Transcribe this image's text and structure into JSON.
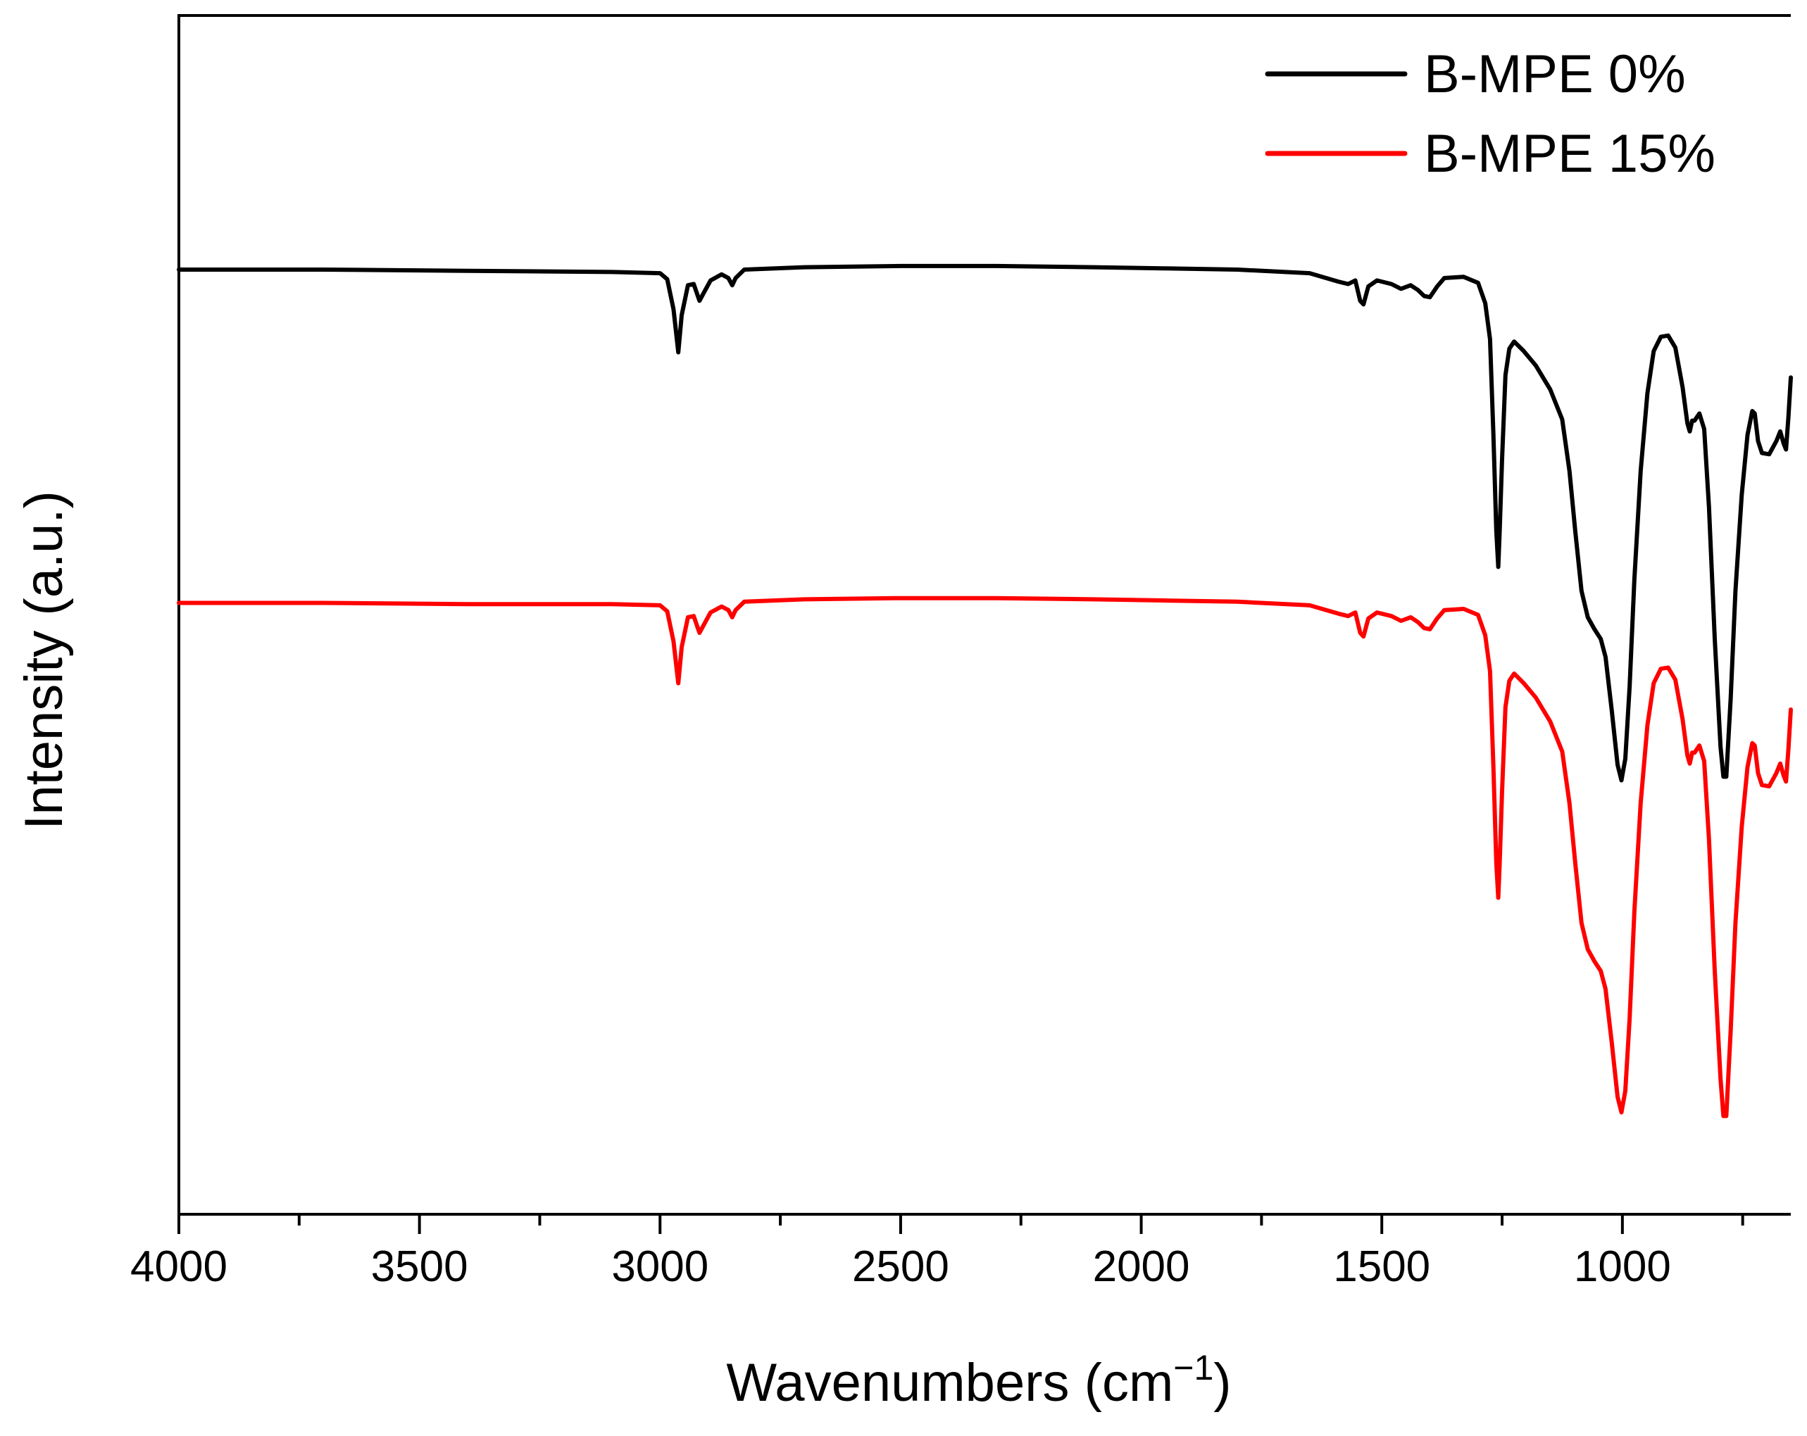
{
  "chart_data": {
    "type": "line",
    "title": "",
    "xlabel": "Wavenumbers (cm",
    "xlabel_sup": "−1",
    "xlabel_close": ")",
    "ylabel": "Intensity (a.u.)",
    "xlim": [
      4000,
      650
    ],
    "ylim": [
      0,
      100
    ],
    "x_ticks": [
      4000,
      3500,
      3000,
      2500,
      2000,
      1500,
      1000
    ],
    "x_tick_labels": [
      "4000",
      "3500",
      "3000",
      "2500",
      "2000",
      "1500",
      "1000"
    ],
    "minor_x_ticks": [
      3750,
      3250,
      2750,
      2250,
      1750,
      1250,
      750
    ],
    "y_ticks_visible": false,
    "grid": false,
    "legend_position": "top-right",
    "series": [
      {
        "name": "B-MPE 0%",
        "color": "#000000",
        "points": [
          [
            4000,
            78.8
          ],
          [
            3700,
            78.8
          ],
          [
            3400,
            78.7
          ],
          [
            3100,
            78.6
          ],
          [
            3000,
            78.5
          ],
          [
            2985,
            78.0
          ],
          [
            2972,
            75.5
          ],
          [
            2962,
            71.9
          ],
          [
            2955,
            75.0
          ],
          [
            2942,
            77.5
          ],
          [
            2930,
            77.6
          ],
          [
            2918,
            76.2
          ],
          [
            2910,
            76.8
          ],
          [
            2895,
            77.9
          ],
          [
            2872,
            78.4
          ],
          [
            2858,
            78.1
          ],
          [
            2850,
            77.5
          ],
          [
            2843,
            78.1
          ],
          [
            2825,
            78.8
          ],
          [
            2700,
            79.0
          ],
          [
            2500,
            79.1
          ],
          [
            2300,
            79.1
          ],
          [
            2100,
            79.0
          ],
          [
            1950,
            78.9
          ],
          [
            1800,
            78.8
          ],
          [
            1650,
            78.5
          ],
          [
            1590,
            77.8
          ],
          [
            1570,
            77.6
          ],
          [
            1555,
            77.9
          ],
          [
            1545,
            76.2
          ],
          [
            1538,
            75.9
          ],
          [
            1528,
            77.4
          ],
          [
            1510,
            77.9
          ],
          [
            1480,
            77.6
          ],
          [
            1460,
            77.2
          ],
          [
            1440,
            77.5
          ],
          [
            1425,
            77.1
          ],
          [
            1412,
            76.6
          ],
          [
            1400,
            76.5
          ],
          [
            1385,
            77.4
          ],
          [
            1370,
            78.1
          ],
          [
            1330,
            78.2
          ],
          [
            1300,
            77.7
          ],
          [
            1285,
            76.0
          ],
          [
            1275,
            73.0
          ],
          [
            1268,
            65.0
          ],
          [
            1262,
            57.0
          ],
          [
            1258,
            54.0
          ],
          [
            1255,
            57.0
          ],
          [
            1250,
            63.0
          ],
          [
            1243,
            70.0
          ],
          [
            1235,
            72.2
          ],
          [
            1225,
            72.8
          ],
          [
            1205,
            72.0
          ],
          [
            1180,
            70.8
          ],
          [
            1150,
            68.8
          ],
          [
            1125,
            66.3
          ],
          [
            1110,
            62.0
          ],
          [
            1098,
            57.0
          ],
          [
            1085,
            52.0
          ],
          [
            1072,
            49.8
          ],
          [
            1058,
            48.8
          ],
          [
            1045,
            48.0
          ],
          [
            1035,
            46.5
          ],
          [
            1022,
            42.0
          ],
          [
            1010,
            37.5
          ],
          [
            1002,
            36.2
          ],
          [
            994,
            38.0
          ],
          [
            985,
            44.0
          ],
          [
            975,
            53.0
          ],
          [
            962,
            62.0
          ],
          [
            948,
            68.5
          ],
          [
            935,
            72.0
          ],
          [
            920,
            73.2
          ],
          [
            905,
            73.3
          ],
          [
            890,
            72.3
          ],
          [
            875,
            69.0
          ],
          [
            865,
            66.0
          ],
          [
            860,
            65.3
          ],
          [
            855,
            66.2
          ],
          [
            850,
            66.2
          ],
          [
            840,
            66.8
          ],
          [
            830,
            65.5
          ],
          [
            820,
            59.0
          ],
          [
            808,
            48.0
          ],
          [
            796,
            39.0
          ],
          [
            790,
            36.5
          ],
          [
            784,
            36.5
          ],
          [
            775,
            43.0
          ],
          [
            765,
            52.0
          ],
          [
            752,
            60.0
          ],
          [
            740,
            65.0
          ],
          [
            730,
            67.0
          ],
          [
            725,
            66.8
          ],
          [
            718,
            64.5
          ],
          [
            710,
            63.5
          ],
          [
            695,
            63.4
          ],
          [
            680,
            64.5
          ],
          [
            672,
            65.3
          ],
          [
            665,
            64.3
          ],
          [
            660,
            63.8
          ],
          [
            655,
            66.5
          ],
          [
            650,
            69.8
          ]
        ]
      },
      {
        "name": "B-MPE 15%",
        "color": "#ff0000",
        "points": [
          [
            4000,
            51.0
          ],
          [
            3700,
            51.0
          ],
          [
            3400,
            50.9
          ],
          [
            3100,
            50.9
          ],
          [
            3000,
            50.8
          ],
          [
            2985,
            50.3
          ],
          [
            2972,
            47.8
          ],
          [
            2962,
            44.3
          ],
          [
            2955,
            47.3
          ],
          [
            2942,
            49.8
          ],
          [
            2930,
            49.9
          ],
          [
            2918,
            48.5
          ],
          [
            2910,
            49.1
          ],
          [
            2895,
            50.2
          ],
          [
            2872,
            50.7
          ],
          [
            2858,
            50.4
          ],
          [
            2850,
            49.8
          ],
          [
            2843,
            50.4
          ],
          [
            2825,
            51.1
          ],
          [
            2700,
            51.3
          ],
          [
            2500,
            51.4
          ],
          [
            2300,
            51.4
          ],
          [
            2100,
            51.3
          ],
          [
            1950,
            51.2
          ],
          [
            1800,
            51.1
          ],
          [
            1650,
            50.8
          ],
          [
            1590,
            50.1
          ],
          [
            1570,
            49.9
          ],
          [
            1555,
            50.2
          ],
          [
            1545,
            48.5
          ],
          [
            1538,
            48.2
          ],
          [
            1528,
            49.7
          ],
          [
            1510,
            50.2
          ],
          [
            1480,
            49.9
          ],
          [
            1460,
            49.5
          ],
          [
            1440,
            49.8
          ],
          [
            1425,
            49.4
          ],
          [
            1412,
            48.9
          ],
          [
            1400,
            48.8
          ],
          [
            1385,
            49.7
          ],
          [
            1370,
            50.4
          ],
          [
            1330,
            50.5
          ],
          [
            1300,
            50.0
          ],
          [
            1285,
            48.3
          ],
          [
            1275,
            45.3
          ],
          [
            1268,
            37.3
          ],
          [
            1262,
            29.3
          ],
          [
            1258,
            26.4
          ],
          [
            1255,
            29.3
          ],
          [
            1250,
            35.3
          ],
          [
            1243,
            42.3
          ],
          [
            1235,
            44.5
          ],
          [
            1225,
            45.1
          ],
          [
            1205,
            44.3
          ],
          [
            1180,
            43.1
          ],
          [
            1150,
            41.1
          ],
          [
            1125,
            38.6
          ],
          [
            1110,
            34.3
          ],
          [
            1098,
            29.3
          ],
          [
            1085,
            24.3
          ],
          [
            1072,
            22.1
          ],
          [
            1058,
            21.1
          ],
          [
            1045,
            20.3
          ],
          [
            1035,
            18.8
          ],
          [
            1022,
            14.3
          ],
          [
            1010,
            9.8
          ],
          [
            1002,
            8.5
          ],
          [
            994,
            10.3
          ],
          [
            985,
            16.3
          ],
          [
            975,
            25.3
          ],
          [
            962,
            34.3
          ],
          [
            948,
            40.8
          ],
          [
            935,
            44.3
          ],
          [
            920,
            45.5
          ],
          [
            905,
            45.6
          ],
          [
            890,
            44.6
          ],
          [
            875,
            41.3
          ],
          [
            865,
            38.3
          ],
          [
            860,
            37.6
          ],
          [
            855,
            38.5
          ],
          [
            850,
            38.5
          ],
          [
            840,
            39.1
          ],
          [
            830,
            37.8
          ],
          [
            820,
            31.3
          ],
          [
            808,
            20.3
          ],
          [
            796,
            11.3
          ],
          [
            790,
            8.2
          ],
          [
            784,
            8.2
          ],
          [
            775,
            15.3
          ],
          [
            765,
            24.3
          ],
          [
            752,
            32.3
          ],
          [
            740,
            37.3
          ],
          [
            730,
            39.3
          ],
          [
            725,
            39.1
          ],
          [
            718,
            36.8
          ],
          [
            710,
            35.8
          ],
          [
            695,
            35.7
          ],
          [
            680,
            36.8
          ],
          [
            672,
            37.6
          ],
          [
            665,
            36.6
          ],
          [
            660,
            36.1
          ],
          [
            655,
            38.8
          ],
          [
            650,
            42.1
          ]
        ]
      }
    ]
  }
}
